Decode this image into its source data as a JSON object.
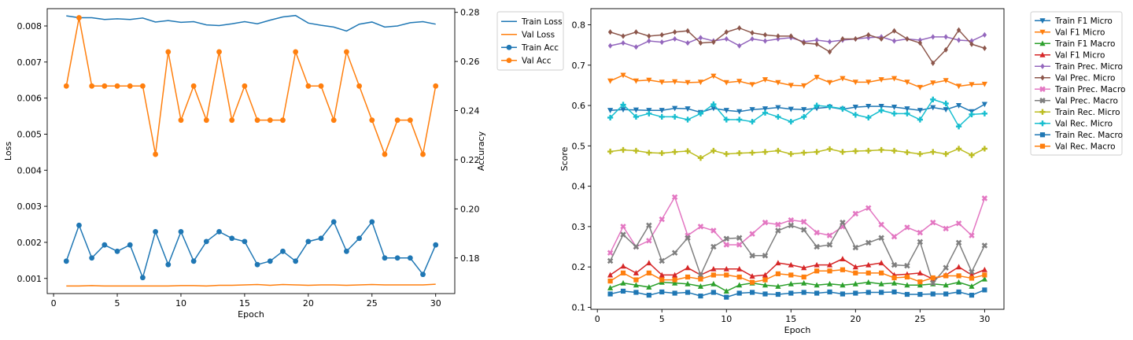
{
  "chart_data": [
    {
      "type": "line",
      "xlabel": "Epoch",
      "ylabel": "Loss",
      "y2label": "Accuracy",
      "xlim": [
        -0.5,
        31.5
      ],
      "ylim": [
        0.00058,
        0.00848
      ],
      "y2lim": [
        0.1655,
        0.2815
      ],
      "x": [
        1,
        2,
        3,
        4,
        5,
        6,
        7,
        8,
        9,
        10,
        11,
        12,
        13,
        14,
        15,
        16,
        17,
        18,
        19,
        20,
        21,
        22,
        23,
        24,
        25,
        26,
        27,
        28,
        29,
        30
      ],
      "xticks": [
        0,
        5,
        10,
        15,
        20,
        25,
        30
      ],
      "xtick_labels": [
        "0",
        "5",
        "10",
        "15",
        "20",
        "25",
        "30"
      ],
      "yticks": [
        0.001,
        0.002,
        0.003,
        0.004,
        0.005,
        0.006,
        0.007,
        0.008
      ],
      "ytick_labels": [
        "0.001",
        "0.002",
        "0.003",
        "0.004",
        "0.005",
        "0.006",
        "0.007",
        "0.008"
      ],
      "y2ticks": [
        0.18,
        0.2,
        0.22,
        0.24,
        0.26,
        0.28
      ],
      "y2tick_labels": [
        "0.18",
        "0.20",
        "0.22",
        "0.24",
        "0.26",
        "0.28"
      ],
      "grid": false,
      "legend_position": "outside-right-top",
      "series": [
        {
          "name": "Train Loss",
          "axis": "left",
          "color": "#1f77b4",
          "marker": "none",
          "values": [
            0.00828,
            0.00823,
            0.00823,
            0.00818,
            0.0082,
            0.00818,
            0.00822,
            0.00811,
            0.00815,
            0.0081,
            0.00812,
            0.00803,
            0.00801,
            0.00806,
            0.00812,
            0.00806,
            0.00816,
            0.00825,
            0.00829,
            0.00808,
            0.00802,
            0.00797,
            0.00786,
            0.00805,
            0.00811,
            0.00797,
            0.008,
            0.00809,
            0.00812,
            0.00805
          ]
        },
        {
          "name": "Val Loss",
          "axis": "left",
          "color": "#ff7f0e",
          "marker": "none",
          "values": [
            0.00079,
            0.00079,
            0.0008,
            0.00079,
            0.00079,
            0.00079,
            0.00079,
            0.00079,
            0.00079,
            0.0008,
            0.0008,
            0.00079,
            0.00081,
            0.00081,
            0.00082,
            0.00083,
            0.00081,
            0.00083,
            0.00082,
            0.00081,
            0.00082,
            0.00082,
            0.00081,
            0.00082,
            0.00083,
            0.00082,
            0.00082,
            0.00082,
            0.00082,
            0.00084
          ]
        },
        {
          "name": "Train Acc",
          "axis": "right",
          "color": "#1f77b4",
          "marker": "circle",
          "values": [
            0.1787,
            0.1933,
            0.18,
            0.1853,
            0.1827,
            0.1853,
            0.172,
            0.1907,
            0.1773,
            0.1907,
            0.1787,
            0.1867,
            0.1907,
            0.188,
            0.1867,
            0.1773,
            0.1787,
            0.1827,
            0.1787,
            0.1867,
            0.188,
            0.1947,
            0.1827,
            0.188,
            0.1947,
            0.18,
            0.18,
            0.18,
            0.1733,
            0.1853
          ]
        },
        {
          "name": "Val Acc",
          "axis": "right",
          "color": "#ff7f0e",
          "marker": "circle",
          "values": [
            0.25,
            0.2778,
            0.25,
            0.25,
            0.25,
            0.25,
            0.25,
            0.2222,
            0.2639,
            0.2361,
            0.25,
            0.2361,
            0.2639,
            0.2361,
            0.25,
            0.2361,
            0.2361,
            0.2361,
            0.2639,
            0.25,
            0.25,
            0.2361,
            0.2639,
            0.25,
            0.2361,
            0.2222,
            0.2361,
            0.2361,
            0.2222,
            0.25
          ]
        }
      ]
    },
    {
      "type": "line",
      "xlabel": "Epoch",
      "ylabel": "Score",
      "xlim": [
        -0.5,
        31.5
      ],
      "ylim": [
        0.095,
        0.84
      ],
      "x": [
        1,
        2,
        3,
        4,
        5,
        6,
        7,
        8,
        9,
        10,
        11,
        12,
        13,
        14,
        15,
        16,
        17,
        18,
        19,
        20,
        21,
        22,
        23,
        24,
        25,
        26,
        27,
        28,
        29,
        30
      ],
      "xticks": [
        0,
        5,
        10,
        15,
        20,
        25,
        30
      ],
      "xtick_labels": [
        "0",
        "5",
        "10",
        "15",
        "20",
        "25",
        "30"
      ],
      "yticks": [
        0.1,
        0.2,
        0.3,
        0.4,
        0.5,
        0.6,
        0.7,
        0.8
      ],
      "ytick_labels": [
        "0.1",
        "0.2",
        "0.3",
        "0.4",
        "0.5",
        "0.6",
        "0.7",
        "0.8"
      ],
      "grid": false,
      "legend_position": "outside-right-top",
      "series": [
        {
          "name": "Train F1 Micro",
          "color": "#1f77b4",
          "marker": "triangle-down",
          "values": [
            0.588,
            0.59,
            0.589,
            0.588,
            0.588,
            0.593,
            0.592,
            0.583,
            0.593,
            0.588,
            0.585,
            0.59,
            0.592,
            0.595,
            0.591,
            0.59,
            0.593,
            0.596,
            0.591,
            0.596,
            0.598,
            0.598,
            0.596,
            0.592,
            0.588,
            0.595,
            0.59,
            0.6,
            0.585,
            0.603
          ]
        },
        {
          "name": "Val F1 Micro",
          "color": "#ff7f0e",
          "marker": "triangle-down",
          "values": [
            0.661,
            0.675,
            0.661,
            0.663,
            0.658,
            0.659,
            0.657,
            0.658,
            0.673,
            0.657,
            0.66,
            0.652,
            0.664,
            0.657,
            0.65,
            0.649,
            0.67,
            0.657,
            0.667,
            0.658,
            0.658,
            0.664,
            0.667,
            0.658,
            0.645,
            0.656,
            0.662,
            0.648,
            0.652,
            0.653
          ]
        },
        {
          "name": "Train F1 Macro",
          "color": "#2ca02c",
          "marker": "triangle-up",
          "values": [
            0.148,
            0.16,
            0.155,
            0.15,
            0.162,
            0.16,
            0.158,
            0.152,
            0.158,
            0.14,
            0.155,
            0.16,
            0.155,
            0.152,
            0.158,
            0.16,
            0.155,
            0.158,
            0.155,
            0.158,
            0.162,
            0.158,
            0.16,
            0.155,
            0.155,
            0.158,
            0.155,
            0.162,
            0.152,
            0.17
          ]
        },
        {
          "name": "Val F1 Micro",
          "color": "#d62728",
          "marker": "triangle-up",
          "values": [
            0.18,
            0.202,
            0.185,
            0.21,
            0.18,
            0.18,
            0.198,
            0.18,
            0.195,
            0.195,
            0.195,
            0.177,
            0.18,
            0.21,
            0.205,
            0.198,
            0.205,
            0.205,
            0.22,
            0.2,
            0.205,
            0.21,
            0.18,
            0.182,
            0.185,
            0.17,
            0.18,
            0.2,
            0.18,
            0.193
          ]
        },
        {
          "name": "Train Prec. Micro",
          "color": "#9467bd",
          "marker": "diamond",
          "values": [
            0.748,
            0.755,
            0.745,
            0.76,
            0.757,
            0.765,
            0.755,
            0.768,
            0.76,
            0.765,
            0.748,
            0.765,
            0.76,
            0.765,
            0.768,
            0.758,
            0.762,
            0.758,
            0.762,
            0.765,
            0.768,
            0.77,
            0.76,
            0.765,
            0.762,
            0.77,
            0.77,
            0.762,
            0.76,
            0.775
          ]
        },
        {
          "name": "Val Prec. Micro",
          "color": "#8c564b",
          "marker": "diamond",
          "values": [
            0.782,
            0.772,
            0.782,
            0.772,
            0.775,
            0.782,
            0.785,
            0.755,
            0.757,
            0.782,
            0.792,
            0.78,
            0.775,
            0.772,
            0.772,
            0.755,
            0.752,
            0.733,
            0.765,
            0.765,
            0.775,
            0.765,
            0.785,
            0.765,
            0.755,
            0.705,
            0.738,
            0.787,
            0.752,
            0.742
          ]
        },
        {
          "name": "Train Prec. Macro",
          "color": "#e377c2",
          "marker": "x",
          "values": [
            0.235,
            0.3,
            0.25,
            0.265,
            0.318,
            0.373,
            0.278,
            0.3,
            0.29,
            0.255,
            0.255,
            0.282,
            0.31,
            0.305,
            0.316,
            0.312,
            0.285,
            0.278,
            0.3,
            0.332,
            0.346,
            0.305,
            0.275,
            0.298,
            0.285,
            0.31,
            0.295,
            0.308,
            0.278,
            0.37
          ]
        },
        {
          "name": "Val Prec. Macro",
          "color": "#7f7f7f",
          "marker": "x",
          "values": [
            0.215,
            0.28,
            0.25,
            0.303,
            0.215,
            0.235,
            0.272,
            0.18,
            0.25,
            0.27,
            0.272,
            0.228,
            0.228,
            0.29,
            0.303,
            0.292,
            0.25,
            0.255,
            0.31,
            0.248,
            0.26,
            0.272,
            0.205,
            0.203,
            0.262,
            0.16,
            0.198,
            0.26,
            0.188,
            0.253
          ]
        },
        {
          "name": "Train Rec. Micro",
          "color": "#bcbd22",
          "marker": "plus",
          "values": [
            0.486,
            0.49,
            0.488,
            0.483,
            0.482,
            0.485,
            0.487,
            0.47,
            0.488,
            0.48,
            0.482,
            0.483,
            0.485,
            0.488,
            0.48,
            0.483,
            0.485,
            0.492,
            0.485,
            0.487,
            0.488,
            0.49,
            0.488,
            0.484,
            0.48,
            0.485,
            0.48,
            0.493,
            0.477,
            0.493
          ]
        },
        {
          "name": "Val Rec. Micro",
          "color": "#17becf",
          "marker": "plus",
          "values": [
            0.57,
            0.602,
            0.572,
            0.58,
            0.572,
            0.572,
            0.565,
            0.58,
            0.603,
            0.565,
            0.565,
            0.56,
            0.582,
            0.572,
            0.56,
            0.572,
            0.6,
            0.597,
            0.592,
            0.577,
            0.57,
            0.588,
            0.58,
            0.58,
            0.565,
            0.615,
            0.605,
            0.548,
            0.578,
            0.58
          ]
        },
        {
          "name": "Train Rec. Macro",
          "color": "#1f77b4",
          "marker": "square",
          "values": [
            0.133,
            0.14,
            0.137,
            0.13,
            0.138,
            0.135,
            0.137,
            0.128,
            0.137,
            0.125,
            0.135,
            0.137,
            0.133,
            0.132,
            0.135,
            0.137,
            0.135,
            0.138,
            0.133,
            0.135,
            0.137,
            0.137,
            0.138,
            0.132,
            0.132,
            0.133,
            0.133,
            0.138,
            0.13,
            0.143
          ]
        },
        {
          "name": "Val Rec. Macro",
          "color": "#ff7f0e",
          "marker": "square",
          "values": [
            0.165,
            0.185,
            0.168,
            0.185,
            0.168,
            0.168,
            0.175,
            0.17,
            0.18,
            0.18,
            0.175,
            0.162,
            0.168,
            0.183,
            0.18,
            0.175,
            0.19,
            0.19,
            0.193,
            0.185,
            0.185,
            0.185,
            0.173,
            0.175,
            0.163,
            0.173,
            0.178,
            0.178,
            0.172,
            0.18
          ]
        }
      ]
    }
  ]
}
